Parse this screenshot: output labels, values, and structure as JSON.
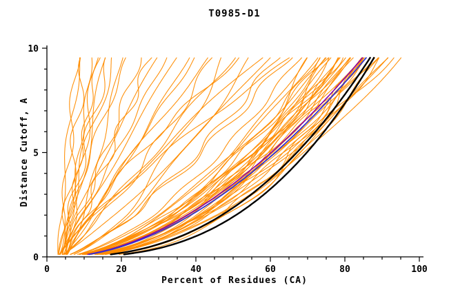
{
  "chart_data": {
    "type": "line",
    "title": "T0985-D1",
    "xlabel": "Percent of Residues (CA)",
    "ylabel": "Distance Cutoff, A",
    "xlim": [
      0,
      100
    ],
    "ylim": [
      0,
      10
    ],
    "xticks": [
      0,
      20,
      40,
      60,
      80,
      100
    ],
    "yticks": [
      0,
      5,
      10
    ],
    "x_minor_step": 5,
    "y_minor_step": 1,
    "grid": false,
    "legend": null,
    "curve_model": "x(y) = x0 + (xmax - x0) * (y / ytop)^p  (GDT-style cumulative curve, ytop = 9.6)",
    "colors": {
      "models": "#FF8C00",
      "reference": "#000000",
      "highlight": "#3333CC",
      "highlight2": "#8800AA",
      "axis": "#000000"
    },
    "groups": [
      {
        "name": "server-models-orange",
        "color": "#FF8C00",
        "width": 1.1,
        "jitter": true,
        "curves": [
          [
            3,
            95,
            0.5
          ],
          [
            4,
            92,
            0.55
          ],
          [
            3,
            90,
            0.48
          ],
          [
            5,
            88,
            0.52
          ],
          [
            4,
            86,
            0.58
          ],
          [
            3,
            85,
            0.45
          ],
          [
            5,
            84,
            0.6
          ],
          [
            4,
            83,
            0.5
          ],
          [
            3,
            82,
            0.55
          ],
          [
            5,
            81,
            0.47
          ],
          [
            4,
            80,
            0.62
          ],
          [
            3,
            79,
            0.53
          ],
          [
            5,
            78,
            0.44
          ],
          [
            4,
            77,
            0.57
          ],
          [
            3,
            76,
            0.49
          ],
          [
            5,
            75,
            0.61
          ],
          [
            4,
            74,
            0.46
          ],
          [
            3,
            73,
            0.54
          ],
          [
            5,
            72,
            0.58
          ],
          [
            4,
            71,
            0.43
          ],
          [
            3,
            70,
            0.56
          ],
          [
            4,
            89,
            0.42
          ],
          [
            5,
            87,
            0.65
          ],
          [
            3,
            84,
            0.4
          ],
          [
            4,
            80,
            0.52
          ],
          [
            5,
            76,
            0.68
          ],
          [
            3,
            93,
            0.6
          ],
          [
            4,
            85,
            0.38
          ],
          [
            5,
            82,
            0.64
          ],
          [
            3,
            78,
            0.42
          ],
          [
            4,
            91,
            0.47
          ],
          [
            5,
            86,
            0.53
          ],
          [
            3,
            88,
            0.57
          ],
          [
            4,
            75,
            0.41
          ],
          [
            5,
            79,
            0.59
          ],
          [
            4,
            65,
            0.75
          ],
          [
            3,
            60,
            0.85
          ],
          [
            5,
            55,
            0.7
          ],
          [
            4,
            50,
            0.95
          ],
          [
            3,
            45,
            0.8
          ],
          [
            5,
            40,
            1.05
          ],
          [
            4,
            68,
            0.62
          ],
          [
            3,
            58,
            1.1
          ],
          [
            5,
            48,
            0.66
          ],
          [
            4,
            38,
            0.9
          ],
          [
            3,
            66,
            1.2
          ],
          [
            5,
            52,
            1.3
          ],
          [
            4,
            62,
            0.72
          ],
          [
            3,
            35,
            1.0
          ],
          [
            5,
            44,
            1.15
          ],
          [
            3,
            8,
            0.8
          ],
          [
            4,
            10,
            1.0
          ],
          [
            3,
            12,
            0.7
          ],
          [
            5,
            14,
            1.2
          ],
          [
            4,
            16,
            0.9
          ],
          [
            3,
            18,
            1.1
          ],
          [
            5,
            20,
            0.75
          ],
          [
            4,
            22,
            1.3
          ],
          [
            3,
            25,
            0.85
          ],
          [
            5,
            28,
            1.0
          ],
          [
            4,
            30,
            1.2
          ],
          [
            3,
            9,
            1.4
          ],
          [
            4,
            13,
            0.65
          ],
          [
            5,
            17,
            1.35
          ],
          [
            3,
            32,
            0.95
          ]
        ]
      },
      {
        "name": "highlight-magenta",
        "color": "#8800AA",
        "width": 1.6,
        "jitter": false,
        "curves": [
          [
            4,
            85,
            0.56
          ]
        ]
      },
      {
        "name": "highlight-blue",
        "color": "#3333CC",
        "width": 1.8,
        "jitter": false,
        "curves": [
          [
            4,
            86,
            0.55
          ]
        ]
      },
      {
        "name": "reference-black",
        "color": "#000000",
        "width": 2.4,
        "jitter": false,
        "curves": [
          [
            5,
            88,
            0.38
          ],
          [
            4,
            87,
            0.42
          ]
        ]
      }
    ]
  }
}
